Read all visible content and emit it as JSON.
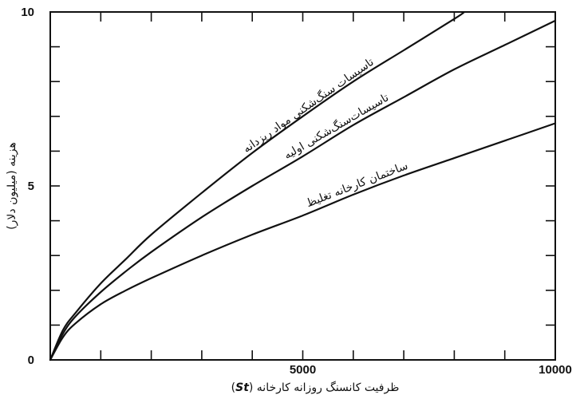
{
  "chart_data": {
    "type": "line",
    "xlabel_text": "ظرفیت کانسنگ روزانه کارخانه (",
    "xlabel_unit": "St",
    "xlabel_close": ")",
    "ylabel": "هزینه (میلیون دلار)",
    "xlim": [
      0,
      10000
    ],
    "ylim": [
      0,
      10
    ],
    "x_ticks": [
      5000,
      10000
    ],
    "x_tick_labels": [
      "5000",
      "10000"
    ],
    "y_ticks": [
      0,
      5,
      10
    ],
    "y_tick_labels": [
      "0",
      "5",
      "10"
    ],
    "x_minor_ticks": [
      1000,
      2000,
      3000,
      4000,
      5000,
      6000,
      7000,
      8000,
      9000
    ],
    "y_minor_ticks": [
      1,
      2,
      3,
      4,
      5,
      6,
      7,
      8,
      9
    ],
    "grid": false,
    "series": [
      {
        "name": "تاسیسات سنگ‌شکنی مواد ریزدانه",
        "x": [
          0,
          250,
          500,
          1000,
          1500,
          2000,
          3000,
          4000,
          5000,
          6000,
          7000,
          8000,
          8200
        ],
        "y": [
          0,
          0.85,
          1.35,
          2.2,
          2.9,
          3.6,
          4.8,
          5.95,
          7.0,
          8.0,
          8.9,
          9.8,
          10.0
        ]
      },
      {
        "name": "تاسیسات‌سنگ‌شکنی اولیه",
        "x": [
          0,
          250,
          500,
          1000,
          1500,
          2000,
          3000,
          4000,
          5000,
          6000,
          7000,
          8000,
          9000,
          10000
        ],
        "y": [
          0,
          0.75,
          1.25,
          1.95,
          2.55,
          3.1,
          4.1,
          5.0,
          5.85,
          6.75,
          7.55,
          8.35,
          9.05,
          9.75
        ]
      },
      {
        "name": "ساختمان کارخانه تغلیظ",
        "x": [
          0,
          250,
          500,
          1000,
          1500,
          2000,
          3000,
          4000,
          5000,
          6000,
          7000,
          8000,
          9000,
          10000
        ],
        "y": [
          0,
          0.65,
          1.05,
          1.6,
          2.0,
          2.35,
          3.0,
          3.6,
          4.15,
          4.75,
          5.3,
          5.8,
          6.3,
          6.8
        ]
      }
    ]
  }
}
